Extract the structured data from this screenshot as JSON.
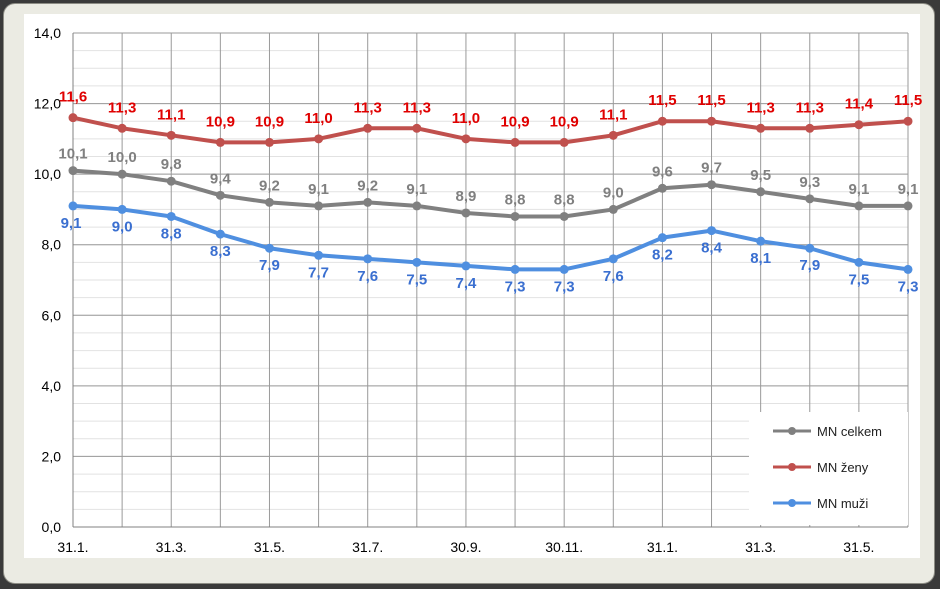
{
  "chart_data": {
    "type": "line",
    "x_tick_labels": [
      "31.1.",
      "",
      "31.3.",
      "",
      "31.5.",
      "",
      "31.7.",
      "",
      "30.9.",
      "",
      "30.11.",
      "",
      "31.1.",
      "",
      "31.3.",
      "",
      "31.5.",
      ""
    ],
    "ylim": [
      0,
      14
    ],
    "y_ticks": [
      "0,0",
      "2,0",
      "4,0",
      "6,0",
      "8,0",
      "10,0",
      "12,0",
      "14,0"
    ],
    "grid": true,
    "legend_position": "bottom-right",
    "series": [
      {
        "name": "MN celkem",
        "color": "#808080",
        "label_color": "#808080",
        "values": [
          10.1,
          10.0,
          9.8,
          9.4,
          9.2,
          9.1,
          9.2,
          9.1,
          8.9,
          8.8,
          8.8,
          9.0,
          9.6,
          9.7,
          9.5,
          9.3,
          9.1,
          9.1
        ],
        "labels": [
          "10,1",
          "10,0",
          "9,8",
          "9,4",
          "9,2",
          "9,1",
          "9,2",
          "9,1",
          "8,9",
          "8,8",
          "8,8",
          "9,0",
          "9,6",
          "9,7",
          "9,5",
          "9,3",
          "9,1",
          "9,1"
        ]
      },
      {
        "name": "MN ženy",
        "color": "#c0504d",
        "label_color": "#e00000",
        "values": [
          11.6,
          11.3,
          11.1,
          10.9,
          10.9,
          11.0,
          11.3,
          11.3,
          11.0,
          10.9,
          10.9,
          11.1,
          11.5,
          11.5,
          11.3,
          11.3,
          11.4,
          11.5
        ],
        "labels": [
          "11,6",
          "11,3",
          "11,1",
          "10,9",
          "10,9",
          "11,0",
          "11,3",
          "11,3",
          "11,0",
          "10,9",
          "10,9",
          "11,1",
          "11,5",
          "11,5",
          "11,3",
          "11,3",
          "11,4",
          "11,5"
        ]
      },
      {
        "name": "MN muži",
        "color": "#4f8fe0",
        "label_color": "#3a6fd0",
        "values": [
          9.1,
          9.0,
          8.8,
          8.3,
          7.9,
          7.7,
          7.6,
          7.5,
          7.4,
          7.3,
          7.3,
          7.6,
          8.2,
          8.4,
          8.1,
          7.9,
          7.5,
          7.3
        ],
        "labels": [
          "9,1",
          "9,0",
          "8,8",
          "8,3",
          "7,9",
          "7,7",
          "7,6",
          "7,5",
          "7,4",
          "7,3",
          "7,3",
          "7,6",
          "8,2",
          "8,4",
          "8,1",
          "7,9",
          "7,5",
          "7,3"
        ]
      }
    ]
  }
}
